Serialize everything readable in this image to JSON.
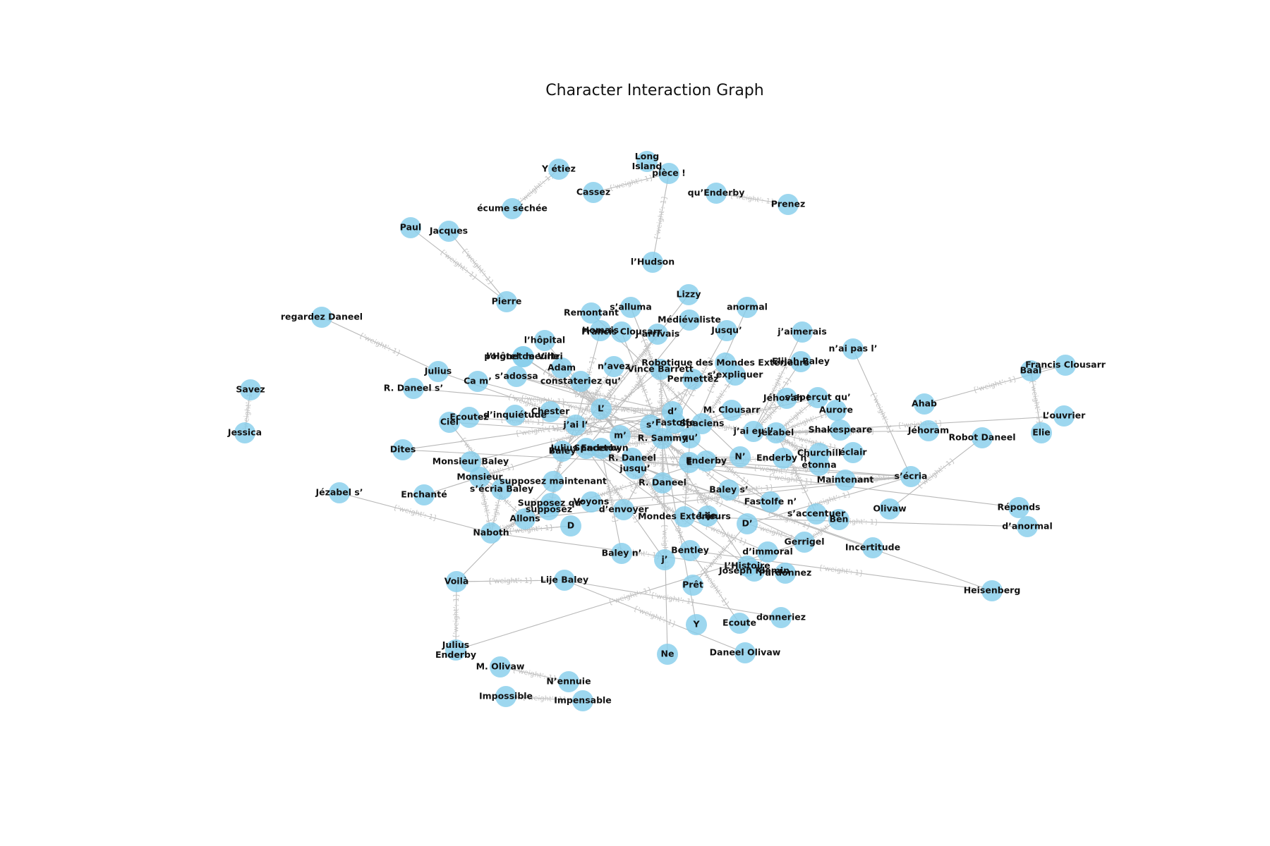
{
  "chart_title": "Character Interaction Graph",
  "edge_label_text": "{'weight': 1}",
  "colors": {
    "node_fill": "#87ceeb",
    "edge": "#b8b8b8",
    "edge_label": "#c4c4c4",
    "label": "#111111"
  },
  "nodes": [
    "Long Island",
    "pièce !",
    "Y étiez",
    "Cassez",
    "qu’Enderby",
    "Prenez",
    "écume séchée",
    "l’Hudson",
    "Paul",
    "Jacques",
    "Pierre",
    "regardez Daneel",
    "Savez",
    "Jessica",
    "Lizzy",
    "anormal",
    "Médiévaliste",
    "Jusqu’",
    "s’alluma",
    "Remontant",
    "l’hôpital",
    "Homais",
    "Francis Clousarr",
    "j’arrivais",
    "l’Hôtel de Ville",
    "j’aimerais",
    "n’ai pas l’",
    "Baal",
    "Francis Clousarr",
    "poignet meurtri",
    "Adam",
    "n’avez",
    "Vince Barrett",
    "Robotique des Mondes Extérieurs",
    "Elijah Baley",
    "Julius",
    "s’adossa",
    "Ca m’",
    "constateriez qu’",
    "Permettez",
    "s’expliquer",
    "R. Daneel s’",
    "Jéhovah !",
    "s’aperçut qu’",
    "Ahab",
    "L’ouvrier",
    "Chester",
    "M. Clousarr",
    "Aurore",
    "Ecoutez",
    "d’inquiétude",
    "Ciel",
    "L’",
    "d’",
    "j’ai l’",
    "s’",
    "Fastolfe",
    "Spaciens",
    "j’ai eu l’",
    "Jézabel",
    "Shakespeare",
    "Jéhoram",
    "Elie",
    "m’",
    "qu’",
    "R. Sammy",
    "Julius Enderby",
    "Spacetown",
    "Baley",
    "Robot Daneel",
    "Dites",
    "Churchill",
    "éclair",
    "R. Daneel",
    "N’",
    "Enderby n’",
    "E",
    "Enderby",
    "Monsieur Baley",
    "jusqu’",
    "étonna",
    "Monsieur",
    "R. Daneel",
    "Maintenant",
    "s’écria",
    "supposez maintenant",
    "s’écria Baley",
    "Enchanté",
    "Jézabel s’",
    "Baley s’",
    "Fastolfe n’",
    "Supposez qu’",
    "Voyons",
    "Réponds",
    "supposez",
    "Olivaw",
    "d’envoyer",
    "s’accentuer",
    "Ben",
    "Allons",
    "Mondes Extérieurs",
    "Lije",
    "D’",
    "d’anormal",
    "D",
    "Naboth",
    "Gerrigel",
    "Incertitude",
    "Baley n’",
    "d’immoral",
    "Bentley",
    "j’",
    "L’Histoire",
    "Joseph Klemin",
    "Pardonnez",
    "Voilà",
    "Lije Baley",
    "Prêt",
    "Heisenberg",
    "donneriez",
    "Y",
    "Ecoute",
    "Ne",
    "Daneel Olivaw",
    "Julius Enderby",
    "M. Olivaw",
    "N’ennuie",
    "Impossible",
    "Impensable"
  ]
}
